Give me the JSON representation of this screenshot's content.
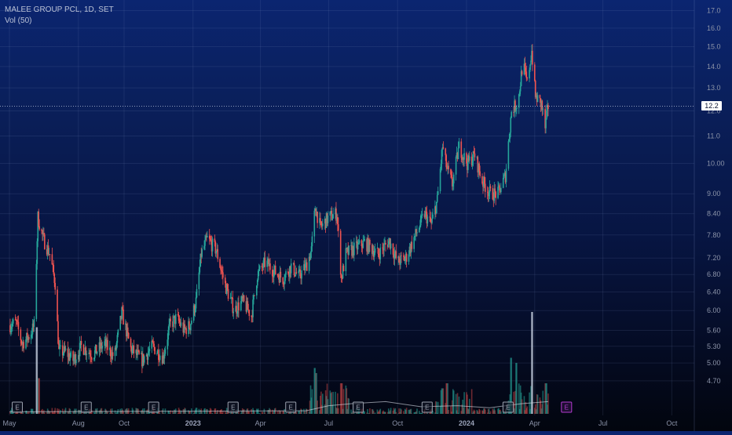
{
  "legend": {
    "symbol": "MALEE GROUP PCL, 1D, SET",
    "volume": "Vol (50)"
  },
  "last_price_label": "12.2",
  "colors": {
    "up": "#26a69a",
    "down": "#ef5350",
    "grid": "rgba(120,140,190,0.15)",
    "earnings_past": "#9aa0ad",
    "earnings_future": "#b43ad0"
  },
  "chart_data": {
    "type": "candlestick",
    "title": "MALEE GROUP PCL, 1D, SET",
    "y_scale": "log",
    "ylim": [
      4.45,
      17.4
    ],
    "y_ticks": [
      "17.0",
      "16.0",
      "15.0",
      "14.0",
      "13.0",
      "12.0",
      "11.0",
      "10.00",
      "9.00",
      "8.40",
      "7.80",
      "7.20",
      "6.80",
      "6.40",
      "6.00",
      "5.60",
      "5.30",
      "5.00",
      "4.70"
    ],
    "x_ticks": [
      "May",
      "Aug",
      "Oct",
      "2023",
      "Apr",
      "Jul",
      "Oct",
      "2024",
      "Apr",
      "Jul",
      "Oct"
    ],
    "x_ticks_bold": [
      "2023",
      "2024"
    ],
    "x_range": [
      "2022-05-01",
      "2024-10-31"
    ],
    "last_date": "2024-04-19",
    "last_price": 12.2,
    "earnings_markers": [
      "E",
      "E",
      "E",
      "E",
      "E",
      "E",
      "E",
      "E",
      "E"
    ],
    "earnings_future_index": 8,
    "price_path": [
      [
        "2022-05-01",
        5.7
      ],
      [
        "2022-05-10",
        5.75
      ],
      [
        "2022-05-18",
        5.35
      ],
      [
        "2022-05-28",
        5.5
      ],
      [
        "2022-06-03",
        5.7
      ],
      [
        "2022-06-08",
        8.3
      ],
      [
        "2022-06-15",
        7.7
      ],
      [
        "2022-06-24",
        7.3
      ],
      [
        "2022-07-01",
        6.6
      ],
      [
        "2022-07-06",
        5.2
      ],
      [
        "2022-07-15",
        5.2
      ],
      [
        "2022-07-25",
        5.05
      ],
      [
        "2022-08-05",
        5.3
      ],
      [
        "2022-08-20",
        5.15
      ],
      [
        "2022-09-05",
        5.35
      ],
      [
        "2022-09-18",
        5.1
      ],
      [
        "2022-09-28",
        5.95
      ],
      [
        "2022-10-10",
        5.25
      ],
      [
        "2022-10-25",
        5.05
      ],
      [
        "2022-11-08",
        5.3
      ],
      [
        "2022-11-22",
        5.1
      ],
      [
        "2022-12-01",
        5.7
      ],
      [
        "2022-12-10",
        5.85
      ],
      [
        "2022-12-20",
        5.6
      ],
      [
        "2022-12-28",
        5.7
      ],
      [
        "2023-01-05",
        6.2
      ],
      [
        "2023-01-12",
        7.3
      ],
      [
        "2023-01-20",
        7.7
      ],
      [
        "2023-02-01",
        7.4
      ],
      [
        "2023-02-12",
        6.6
      ],
      [
        "2023-02-25",
        6.0
      ],
      [
        "2023-03-08",
        6.2
      ],
      [
        "2023-03-20",
        5.9
      ],
      [
        "2023-03-28",
        6.8
      ],
      [
        "2023-04-08",
        7.1
      ],
      [
        "2023-04-18",
        6.9
      ],
      [
        "2023-05-01",
        6.7
      ],
      [
        "2023-05-12",
        7.0
      ],
      [
        "2023-05-22",
        6.75
      ],
      [
        "2023-06-01",
        7.0
      ],
      [
        "2023-06-08",
        7.4
      ],
      [
        "2023-06-13",
        8.6
      ],
      [
        "2023-06-20",
        8.0
      ],
      [
        "2023-07-01",
        8.3
      ],
      [
        "2023-07-12",
        8.4
      ],
      [
        "2023-07-18",
        6.7
      ],
      [
        "2023-07-24",
        7.3
      ],
      [
        "2023-08-01",
        7.4
      ],
      [
        "2023-08-18",
        7.6
      ],
      [
        "2023-09-05",
        7.3
      ],
      [
        "2023-09-20",
        7.65
      ],
      [
        "2023-10-01",
        7.1
      ],
      [
        "2023-10-12",
        7.2
      ],
      [
        "2023-10-25",
        7.8
      ],
      [
        "2023-11-06",
        8.4
      ],
      [
        "2023-11-15",
        8.1
      ],
      [
        "2023-11-23",
        8.8
      ],
      [
        "2023-11-30",
        10.6
      ],
      [
        "2023-12-06",
        9.8
      ],
      [
        "2023-12-13",
        9.3
      ],
      [
        "2023-12-22",
        10.6
      ],
      [
        "2024-01-02",
        10.0
      ],
      [
        "2024-01-12",
        10.3
      ],
      [
        "2024-01-22",
        9.4
      ],
      [
        "2024-02-02",
        9.0
      ],
      [
        "2024-02-12",
        9.0
      ],
      [
        "2024-02-22",
        9.6
      ],
      [
        "2024-03-01",
        12.0
      ],
      [
        "2024-03-10",
        12.4
      ],
      [
        "2024-03-16",
        14.2
      ],
      [
        "2024-03-22",
        13.2
      ],
      [
        "2024-03-28",
        14.8
      ],
      [
        "2024-04-02",
        12.6
      ],
      [
        "2024-04-10",
        12.3
      ],
      [
        "2024-04-15",
        11.3
      ],
      [
        "2024-04-19",
        12.2
      ]
    ],
    "volume_spikes": [
      [
        "2022-06-06",
        0.85
      ],
      [
        "2022-06-09",
        0.35
      ],
      [
        "2023-06-12",
        0.45
      ],
      [
        "2023-06-14",
        0.4
      ],
      [
        "2023-07-18",
        0.3
      ],
      [
        "2023-07-24",
        0.2
      ],
      [
        "2023-11-30",
        0.25
      ],
      [
        "2023-12-06",
        0.3
      ],
      [
        "2024-03-01",
        0.55
      ],
      [
        "2024-03-08",
        0.5
      ],
      [
        "2024-03-29",
        1.0
      ],
      [
        "2024-04-16",
        0.3
      ]
    ]
  }
}
